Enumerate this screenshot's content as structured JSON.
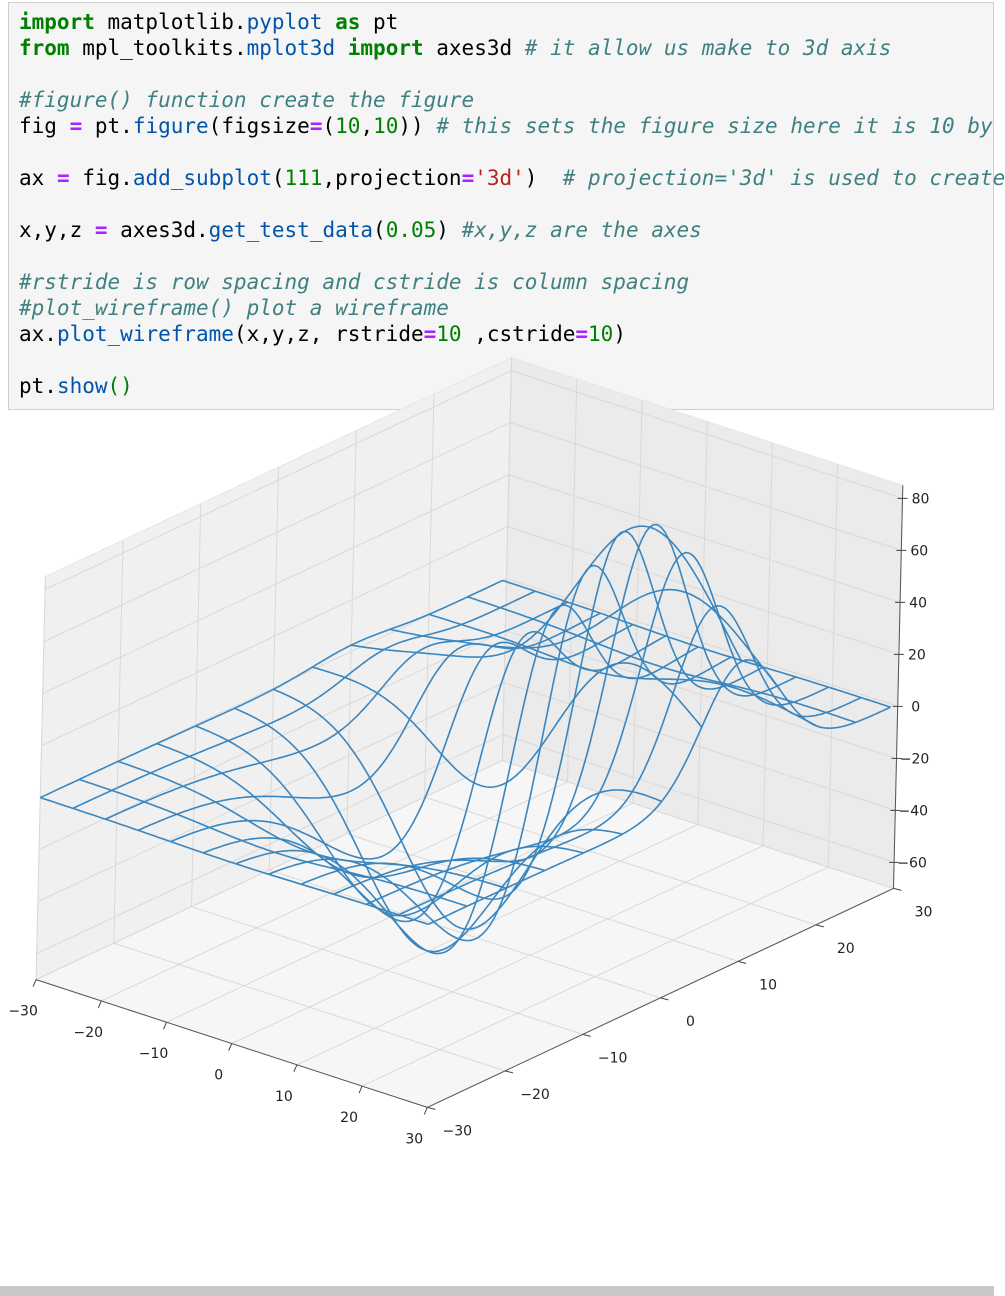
{
  "code": {
    "lines": [
      [
        {
          "t": "import",
          "c": "kw"
        },
        {
          "t": " matplotlib.",
          "c": ""
        },
        {
          "t": "pyplot",
          "c": "nm"
        },
        {
          "t": " ",
          "c": ""
        },
        {
          "t": "as",
          "c": "kw"
        },
        {
          "t": " pt",
          "c": ""
        }
      ],
      [
        {
          "t": "from",
          "c": "kw"
        },
        {
          "t": " mpl_toolkits.",
          "c": ""
        },
        {
          "t": "mplot3d",
          "c": "nm"
        },
        {
          "t": " ",
          "c": ""
        },
        {
          "t": "import",
          "c": "kw"
        },
        {
          "t": " axes3d ",
          "c": ""
        },
        {
          "t": "# it allow us make to 3d axis",
          "c": "cm"
        }
      ],
      [],
      [
        {
          "t": "#figure() function create the figure",
          "c": "cm"
        }
      ],
      [
        {
          "t": "fig ",
          "c": ""
        },
        {
          "t": "=",
          "c": "op"
        },
        {
          "t": " pt.",
          "c": ""
        },
        {
          "t": "figure",
          "c": "nm"
        },
        {
          "t": "(figsize",
          "c": ""
        },
        {
          "t": "=",
          "c": "op"
        },
        {
          "t": "(",
          "c": ""
        },
        {
          "t": "10",
          "c": "num"
        },
        {
          "t": ",",
          "c": ""
        },
        {
          "t": "10",
          "c": "num"
        },
        {
          "t": ")) ",
          "c": ""
        },
        {
          "t": "# this sets the figure size here it is 10 by",
          "c": "cm"
        }
      ],
      [],
      [
        {
          "t": "ax ",
          "c": ""
        },
        {
          "t": "=",
          "c": "op"
        },
        {
          "t": " fig.",
          "c": ""
        },
        {
          "t": "add_subplot",
          "c": "nm"
        },
        {
          "t": "(",
          "c": ""
        },
        {
          "t": "111",
          "c": "num"
        },
        {
          "t": ",projection",
          "c": ""
        },
        {
          "t": "=",
          "c": "op"
        },
        {
          "t": "'3d'",
          "c": "str"
        },
        {
          "t": ")  ",
          "c": ""
        },
        {
          "t": "# projection='3d' is used to create",
          "c": "cm"
        }
      ],
      [],
      [
        {
          "t": "x,y,z ",
          "c": ""
        },
        {
          "t": "=",
          "c": "op"
        },
        {
          "t": " axes3d.",
          "c": ""
        },
        {
          "t": "get_test_data",
          "c": "nm"
        },
        {
          "t": "(",
          "c": ""
        },
        {
          "t": "0.05",
          "c": "num"
        },
        {
          "t": ") ",
          "c": ""
        },
        {
          "t": "#x,y,z are the axes",
          "c": "cm"
        }
      ],
      [],
      [
        {
          "t": "#rstride is row spacing and cstride is column spacing",
          "c": "cm"
        }
      ],
      [
        {
          "t": "#plot_wireframe() plot a wireframe",
          "c": "cm"
        }
      ],
      [
        {
          "t": "ax.",
          "c": ""
        },
        {
          "t": "plot_wireframe",
          "c": "nm"
        },
        {
          "t": "(x,y,z, rstride",
          "c": ""
        },
        {
          "t": "=",
          "c": "op"
        },
        {
          "t": "10",
          "c": "num"
        },
        {
          "t": " ,cstride",
          "c": ""
        },
        {
          "t": "=",
          "c": "op"
        },
        {
          "t": "10",
          "c": "num"
        },
        {
          "t": ")",
          "c": ""
        }
      ],
      [],
      [
        {
          "t": "pt.",
          "c": ""
        },
        {
          "t": "show",
          "c": "nm"
        },
        {
          "t": "()",
          "c": "num"
        }
      ]
    ]
  },
  "colors": {
    "cell_background": "#f5f5f5",
    "wire": "#3a86bf",
    "pane": "#f2f2f2",
    "grid": "#d9d9d9"
  },
  "chart_data": {
    "type": "wireframe",
    "function": "axes3d.get_test_data(0.05)",
    "rstride": 10,
    "cstride": 10,
    "x_ticks": [
      "−30",
      "−20",
      "−10",
      "0",
      "10",
      "20",
      "30"
    ],
    "y_ticks": [
      "−30",
      "−20",
      "−10",
      "0",
      "10",
      "20",
      "30"
    ],
    "z_ticks": [
      "−60",
      "−40",
      "−20",
      "0",
      "20",
      "40",
      "60",
      "80"
    ],
    "xlim": [
      -30,
      30
    ],
    "ylim": [
      -30,
      30
    ],
    "zlim": [
      -70,
      85
    ],
    "grid": true
  }
}
